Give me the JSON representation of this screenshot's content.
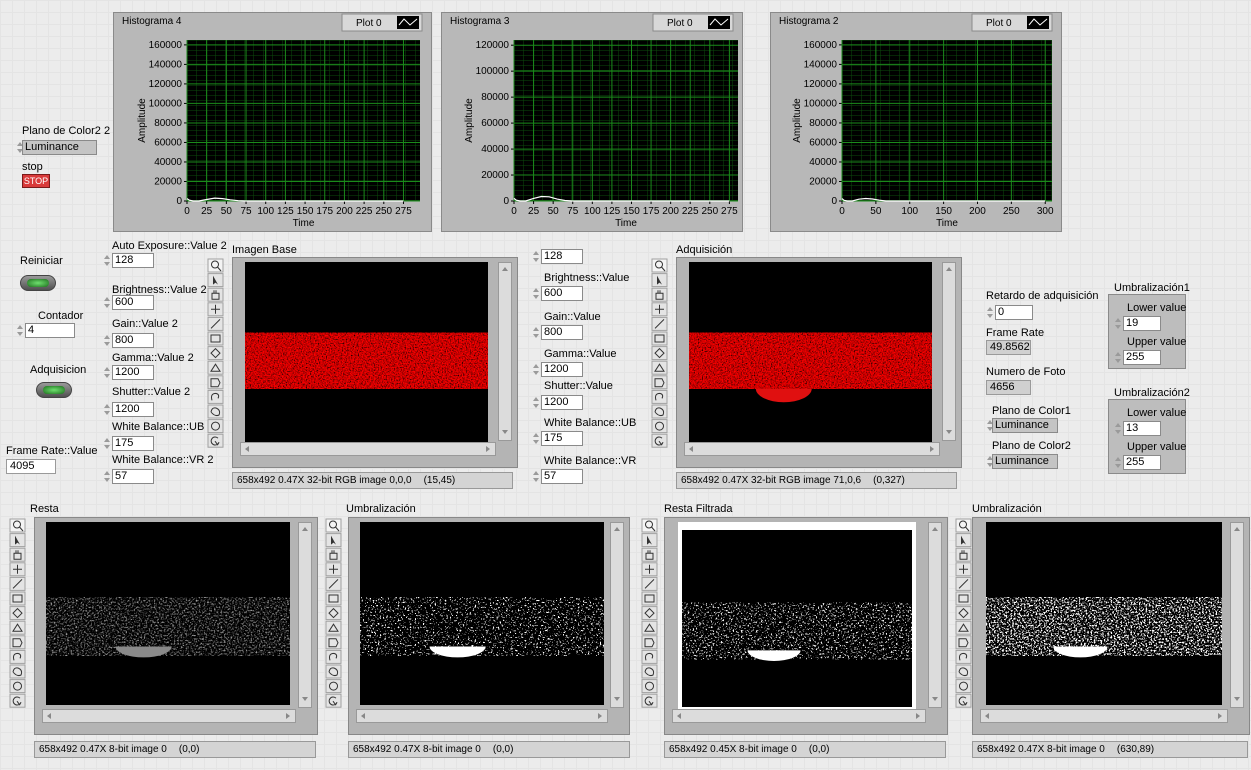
{
  "histograms": [
    {
      "title": "Histograma 4",
      "legend": "Plot 0",
      "ylabel": "Amplitude",
      "xlabel": "Time",
      "xlim": [
        0,
        296
      ],
      "ylim": [
        0,
        165000
      ],
      "xticks": [
        0,
        25,
        50,
        75,
        100,
        125,
        150,
        175,
        200,
        225,
        250,
        275
      ],
      "yticks": [
        0,
        20000,
        40000,
        60000,
        80000,
        100000,
        120000,
        140000,
        160000
      ],
      "x": [
        0,
        3,
        8,
        15,
        25,
        35,
        45,
        55,
        65,
        75,
        100,
        150,
        200,
        275
      ],
      "values": [
        2500,
        800,
        0,
        0,
        1500,
        3000,
        2500,
        1200,
        300,
        0,
        0,
        0,
        0,
        0
      ]
    },
    {
      "title": "Histograma 3",
      "legend": "Plot 0",
      "ylabel": "Amplitude",
      "xlabel": "Time",
      "xlim": [
        0,
        286
      ],
      "ylim": [
        0,
        124000
      ],
      "xticks": [
        0,
        25,
        50,
        75,
        100,
        125,
        150,
        175,
        200,
        225,
        250,
        275
      ],
      "yticks": [
        0,
        20000,
        40000,
        60000,
        80000,
        100000,
        120000
      ],
      "x": [
        0,
        3,
        8,
        15,
        25,
        35,
        45,
        55,
        65,
        75,
        100,
        150,
        200,
        275
      ],
      "values": [
        2000,
        600,
        0,
        0,
        2000,
        3500,
        3200,
        1500,
        400,
        0,
        0,
        0,
        0,
        0
      ]
    },
    {
      "title": "Histograma 2",
      "legend": "Plot 0",
      "ylabel": "Amplitude",
      "xlabel": "Time",
      "xlim": [
        0,
        310
      ],
      "ylim": [
        0,
        165000
      ],
      "xticks": [
        0,
        50,
        100,
        150,
        200,
        250,
        300
      ],
      "yticks": [
        0,
        20000,
        40000,
        60000,
        80000,
        100000,
        120000,
        140000,
        160000
      ],
      "x": [
        0,
        3,
        8,
        15,
        25,
        35,
        45,
        55,
        65,
        100,
        150,
        200,
        300
      ],
      "values": [
        2500,
        700,
        0,
        0,
        1800,
        2600,
        2000,
        800,
        0,
        0,
        0,
        0,
        0
      ]
    }
  ],
  "left_controls": {
    "color_plane_label": "Plano de Color2 2",
    "color_plane_value": "Luminance",
    "stop_label": "stop",
    "stop_button": "STOP",
    "reset_label": "Reiniciar",
    "counter_label": "Contador",
    "counter_value": "4",
    "acquire_label": "Adquisicion",
    "frame_rate_label": "Frame Rate::Value",
    "frame_rate_value": "4095"
  },
  "camera_settings_2": [
    {
      "label": "Auto Exposure::Value 2",
      "value": "128"
    },
    {
      "label": "Brightness::Value 2",
      "value": "600"
    },
    {
      "label": "Gain::Value 2",
      "value": "800"
    },
    {
      "label": "Gamma::Value 2",
      "value": "1200"
    },
    {
      "label": "Shutter::Value 2",
      "value": "1200"
    },
    {
      "label": "White Balance::UB 2",
      "value": "175"
    },
    {
      "label": "White Balance::VR 2",
      "value": "57"
    }
  ],
  "camera_settings": [
    {
      "value": "128"
    },
    {
      "label": "Brightness::Value",
      "value": "600"
    },
    {
      "label": "Gain::Value",
      "value": "800"
    },
    {
      "label": "Gamma::Value",
      "value": "1200"
    },
    {
      "label": "Shutter::Value",
      "value": "1200"
    },
    {
      "label": "White Balance::UB",
      "value": "175"
    },
    {
      "label": "White Balance::VR",
      "value": "57"
    }
  ],
  "displays": [
    {
      "label": "Imagen Base",
      "status": "658x492 0.47X 32-bit RGB image 0,0,0",
      "coords": "(15,45)"
    },
    {
      "label": "Adquisición",
      "status": "658x492 0.47X 32-bit RGB image 71,0,6",
      "coords": "(0,327)"
    },
    {
      "label": "Resta",
      "status": "658x492 0.47X 8-bit image 0",
      "coords": "(0,0)"
    },
    {
      "label": "Umbralización",
      "status": "658x492 0.47X 8-bit image 0",
      "coords": "(0,0)"
    },
    {
      "label": "Resta Filtrada",
      "status": "658x492 0.45X 8-bit image 0",
      "coords": "(0,0)"
    },
    {
      "label": "Umbralización",
      "status": "658x492 0.47X 8-bit image 0",
      "coords": "(630,89)"
    }
  ],
  "acquisition_info": {
    "delay_label": "Retardo de adquisición",
    "delay_value": "0",
    "frame_rate_label": "Frame Rate",
    "frame_rate_value": "49.8562",
    "photo_number_label": "Numero de Foto",
    "photo_number_value": "4656",
    "color_plane1_label": "Plano de Color1",
    "color_plane1_value": "Luminance",
    "color_plane2_label": "Plano de Color2",
    "color_plane2_value": "Luminance"
  },
  "thresholds": [
    {
      "title": "Umbralización1",
      "lower_label": "Lower value",
      "lower": "19",
      "upper_label": "Upper value",
      "upper": "255"
    },
    {
      "title": "Umbralización2",
      "lower_label": "Lower value",
      "lower": "13",
      "upper_label": "Upper value",
      "upper": "255"
    }
  ]
}
